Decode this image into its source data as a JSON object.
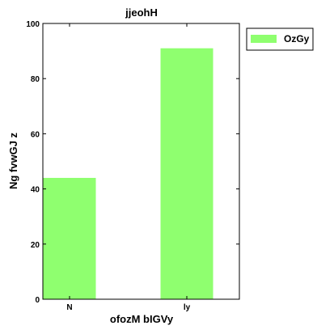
{
  "chart_data": {
    "type": "bar",
    "title": "jjeohH",
    "xlabel": "ofozM bIGVy",
    "ylabel": "Ng fvwGJ z",
    "categories": [
      "N",
      "ly"
    ],
    "series": [
      {
        "name": "OzGy",
        "values": [
          44,
          91
        ]
      }
    ],
    "ylim": [
      0,
      100
    ],
    "yticks": [
      0,
      20,
      40,
      60,
      80,
      100
    ],
    "grid": false,
    "legend": "outside-top-right",
    "colors": {
      "bar": "#8fff6f",
      "axis": "#000000"
    }
  }
}
